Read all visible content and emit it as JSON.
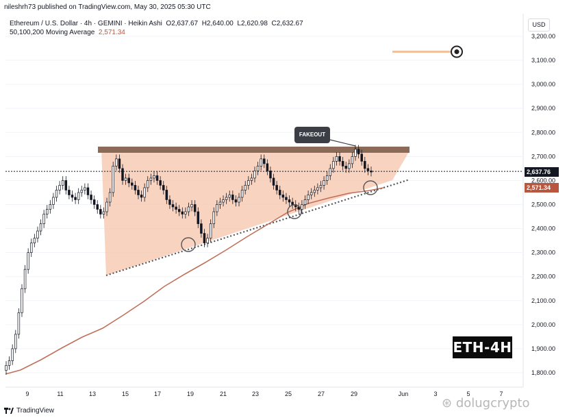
{
  "header": {
    "author_line": "nileshrh73 published on TradingView.com, May 30, 2025 05:30 UTC"
  },
  "chart_info": {
    "symbol_line_label": "Ethereum / U.S. Dollar · 4h · GEMINI · Heikin Ashi",
    "open_label": "O",
    "open_value": "2,637.67",
    "high_label": "H",
    "high_value": "2,640.00",
    "low_label": "L",
    "low_value": "2,620.98",
    "close_label": "C",
    "close_value": "2,632.67",
    "ma_label": "50,100,200 Moving Average",
    "ma_value": "2,571.34"
  },
  "currency_badge": "USD",
  "watermark_label": "ETH-4H",
  "annotation_label": "FAKEOUT",
  "price_tags": {
    "last": "2,637.76",
    "ma": "2,571.34"
  },
  "brand": "TradingView",
  "credit": "dolugcrypto",
  "colors": {
    "bull": "#131722",
    "bear": "#131722",
    "ma_line": "#c0705a",
    "triangle_fill": "#f6c4ab",
    "resistance": "#8b6a58",
    "fakeout_box": "#3b3f45",
    "target_line": "#f2c29f",
    "ma_tag": "#b9563f"
  },
  "chart_data": {
    "type": "candlestick",
    "chart_style": "heikin-ashi",
    "y_axis": {
      "min": 1800,
      "max": 3200,
      "ticks": [
        "3,200.00",
        "3,100.00",
        "3,000.00",
        "2,900.00",
        "2,800.00",
        "2,700.00",
        "2,600.00",
        "2,500.00",
        "2,400.00",
        "2,300.00",
        "2,200.00",
        "2,100.00",
        "2,000.00",
        "1,900.00",
        "1,800.00"
      ],
      "tick_values": [
        3200,
        3100,
        3000,
        2900,
        2800,
        2700,
        2600,
        2500,
        2400,
        2300,
        2200,
        2100,
        2000,
        1900,
        1800
      ]
    },
    "x_axis": {
      "ticks": [
        "9",
        "11",
        "13",
        "15",
        "17",
        "19",
        "21",
        "23",
        "25",
        "27",
        "29",
        "Jun",
        "3",
        "5",
        "7"
      ]
    },
    "last_price": 2637.76,
    "moving_average_value": 2571.34,
    "resistance_level": 2720,
    "target_level": 3130,
    "grid": true,
    "legend_placement": "top-left"
  }
}
